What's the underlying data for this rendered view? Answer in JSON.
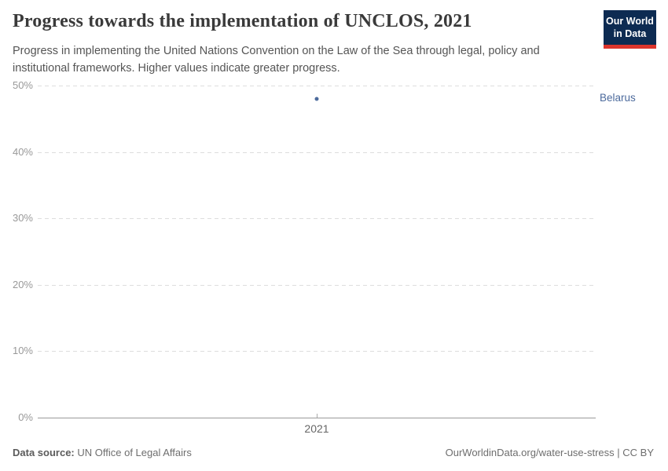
{
  "header": {
    "title": "Progress towards the implementation of UNCLOS, 2021",
    "subtitle": "Progress in implementing the United Nations Convention on the Law of the Sea through legal, policy and institutional frameworks. Higher values indicate greater progress.",
    "logo_line1": "Our World",
    "logo_line2": "in Data"
  },
  "chart_data": {
    "type": "scatter",
    "title": "Progress towards the implementation of UNCLOS, 2021",
    "x": [
      "2021"
    ],
    "series": [
      {
        "name": "Belarus",
        "values": [
          48
        ]
      }
    ],
    "xlabel": "",
    "ylabel": "",
    "ylim": [
      0,
      50
    ],
    "yticks": [
      0,
      10,
      20,
      30,
      40,
      50
    ],
    "ytick_suffix": "%",
    "xticks": [
      "2021"
    ],
    "grid": true,
    "gridlines_dashed": true,
    "legend_position": "label-right-of-point"
  },
  "footer": {
    "datasource_label": "Data source:",
    "datasource_value": "UN Office of Legal Affairs",
    "attribution": "OurWorldinData.org/water-use-stress | CC BY"
  },
  "colors": {
    "accent_series": "#4c6a9c",
    "title_text": "#3a3a3a",
    "subtitle_text": "#555555",
    "tick_text": "#999999",
    "gridline": "#dddddd",
    "axis_line": "#999999",
    "logo_bg": "#0d2b52",
    "logo_red": "#dc352c"
  }
}
